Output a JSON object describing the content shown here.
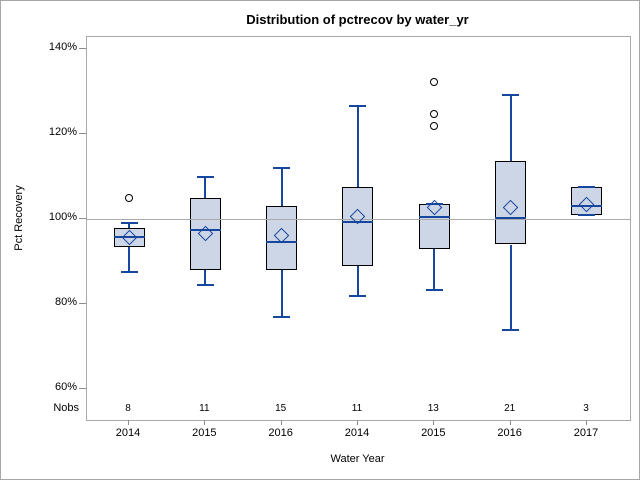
{
  "title": "Distribution of pctrecov by water_yr",
  "y_axis": {
    "label": "Pct Recovery",
    "ticks": [
      {
        "label": "140%",
        "value": 140
      },
      {
        "label": "120%",
        "value": 120
      },
      {
        "label": "100%",
        "value": 100
      },
      {
        "label": "80%",
        "value": 80
      },
      {
        "label": "60%",
        "value": 60
      }
    ]
  },
  "x_axis": {
    "label": "Water Year"
  },
  "nobs_label": "Nobs",
  "colors": {
    "box_fill": "#cdd6e6",
    "box_border": "#000000",
    "line_navy": "#17469e",
    "grid_gray": "#ababab",
    "frame_gray": "#a9a9a9",
    "tick_gray": "#8c8c8c",
    "outlier_black": "#000000"
  },
  "chart_data": {
    "type": "boxplot",
    "title": "Distribution of pctrecov by water_yr",
    "xlabel": "Water Year",
    "ylabel": "Pct Recovery",
    "ylim": [
      53,
      143
    ],
    "reference_line": 100,
    "grid": "reference line at 100% only",
    "categories": [
      "2014",
      "2015",
      "2016",
      "2014",
      "2015",
      "2016",
      "2017"
    ],
    "nobs": [
      8,
      11,
      15,
      11,
      13,
      21,
      3
    ],
    "series": [
      {
        "category": "2014",
        "nobs": 8,
        "whisker_low": 87.5,
        "q1": 93.5,
        "median": 95.8,
        "mean": 95.7,
        "q3": 98,
        "whisker_high": 99,
        "outliers": [
          105
        ]
      },
      {
        "category": "2015",
        "nobs": 11,
        "whisker_low": 84.5,
        "q1": 88,
        "median": 97.5,
        "mean": 96.7,
        "q3": 105,
        "whisker_high": 110,
        "outliers": []
      },
      {
        "category": "2016",
        "nobs": 15,
        "whisker_low": 77,
        "q1": 88,
        "median": 94.5,
        "mean": 96.2,
        "q3": 103,
        "whisker_high": 112,
        "outliers": []
      },
      {
        "category": "2014",
        "nobs": 11,
        "whisker_low": 82,
        "q1": 89,
        "median": 99.3,
        "mean": 100.5,
        "q3": 107.5,
        "whisker_high": 126.5,
        "outliers": []
      },
      {
        "category": "2015",
        "nobs": 13,
        "whisker_low": 83.3,
        "q1": 93,
        "median": 100.4,
        "mean": 102.6,
        "q3": 103.5,
        "whisker_high": 103.5,
        "outliers": [
          122,
          124.7,
          132.3
        ]
      },
      {
        "category": "2016",
        "nobs": 21,
        "whisker_low": 74,
        "q1": 94,
        "median": 100.2,
        "mean": 102.6,
        "q3": 113.6,
        "whisker_high": 129.2,
        "outliers": []
      },
      {
        "category": "2017",
        "nobs": 3,
        "whisker_low": 100.9,
        "q1": 100.9,
        "median": 103.1,
        "mean": 103.5,
        "q3": 107.5,
        "whisker_high": 107.5,
        "outliers": []
      }
    ]
  }
}
